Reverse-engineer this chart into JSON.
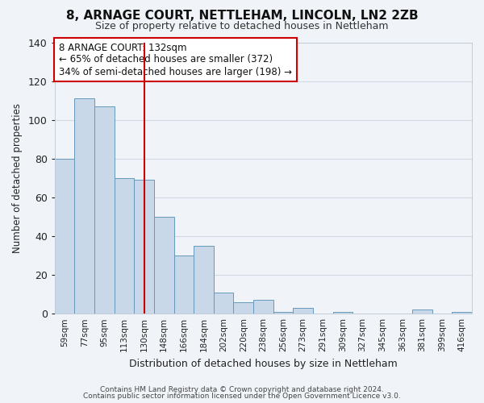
{
  "title": "8, ARNAGE COURT, NETTLEHAM, LINCOLN, LN2 2ZB",
  "subtitle": "Size of property relative to detached houses in Nettleham",
  "xlabel": "Distribution of detached houses by size in Nettleham",
  "ylabel": "Number of detached properties",
  "bar_labels": [
    "59sqm",
    "77sqm",
    "95sqm",
    "113sqm",
    "130sqm",
    "148sqm",
    "166sqm",
    "184sqm",
    "202sqm",
    "220sqm",
    "238sqm",
    "256sqm",
    "273sqm",
    "291sqm",
    "309sqm",
    "327sqm",
    "345sqm",
    "363sqm",
    "381sqm",
    "399sqm",
    "416sqm"
  ],
  "bar_values": [
    80,
    111,
    107,
    70,
    69,
    50,
    30,
    35,
    11,
    6,
    7,
    1,
    3,
    0,
    1,
    0,
    0,
    0,
    2,
    0,
    1
  ],
  "bar_color": "#c8d8e8",
  "bar_edge_color": "#6699bb",
  "vline_x": 4.5,
  "vline_color": "#cc0000",
  "annotation_title": "8 ARNAGE COURT: 132sqm",
  "annotation_line1": "← 65% of detached houses are smaller (372)",
  "annotation_line2": "34% of semi-detached houses are larger (198) →",
  "annotation_box_color": "#ffffff",
  "annotation_box_edge": "#cc0000",
  "ylim": [
    0,
    140
  ],
  "yticks": [
    0,
    20,
    40,
    60,
    80,
    100,
    120,
    140
  ],
  "grid_color": "#d0d8e8",
  "bg_color": "#f0f4f8",
  "footer1": "Contains HM Land Registry data © Crown copyright and database right 2024.",
  "footer2": "Contains public sector information licensed under the Open Government Licence v3.0."
}
